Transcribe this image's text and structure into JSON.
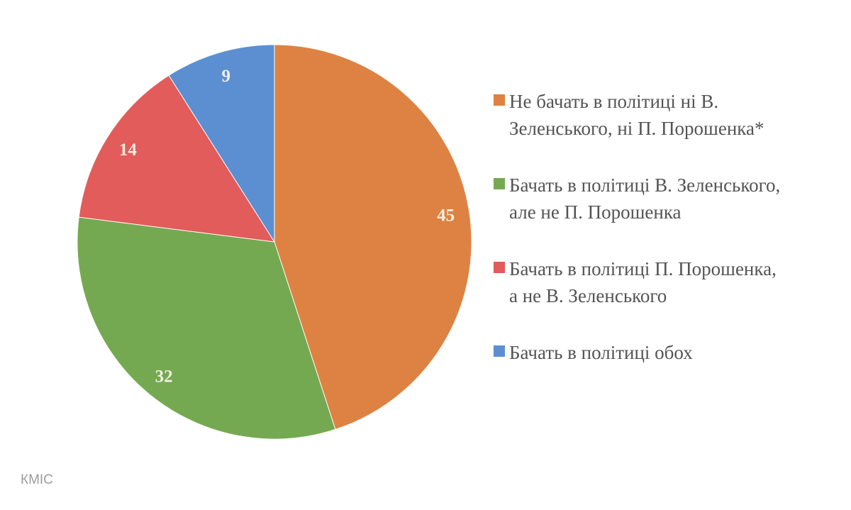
{
  "chart_data": {
    "type": "pie",
    "title": "",
    "legend_position": "right",
    "start_angle_deg": 0,
    "direction": "clockwise",
    "data_labels": "values-inside-slices",
    "slices": [
      {
        "label": "Не бачать в політиці ні В.\nЗеленського, ні П. Порошенка*",
        "value": 45,
        "color": "#DD8243"
      },
      {
        "label": "Бачать в політиці В. Зеленського,\nале не П. Порошенка",
        "value": 32,
        "color": "#74A951"
      },
      {
        "label": "Бачать в політиці П. Порошенка,\nа не В. Зеленського",
        "value": 14,
        "color": "#E15C5B"
      },
      {
        "label": "Бачать в політиці обох",
        "value": 9,
        "color": "#5C8FD2"
      }
    ]
  },
  "footer": {
    "source_label": "КМІС"
  },
  "colors": {
    "background": "#ffffff",
    "slice_value_text": "#F2EFE2",
    "legend_text": "#545454",
    "footer_text": "#9C9C9C"
  }
}
